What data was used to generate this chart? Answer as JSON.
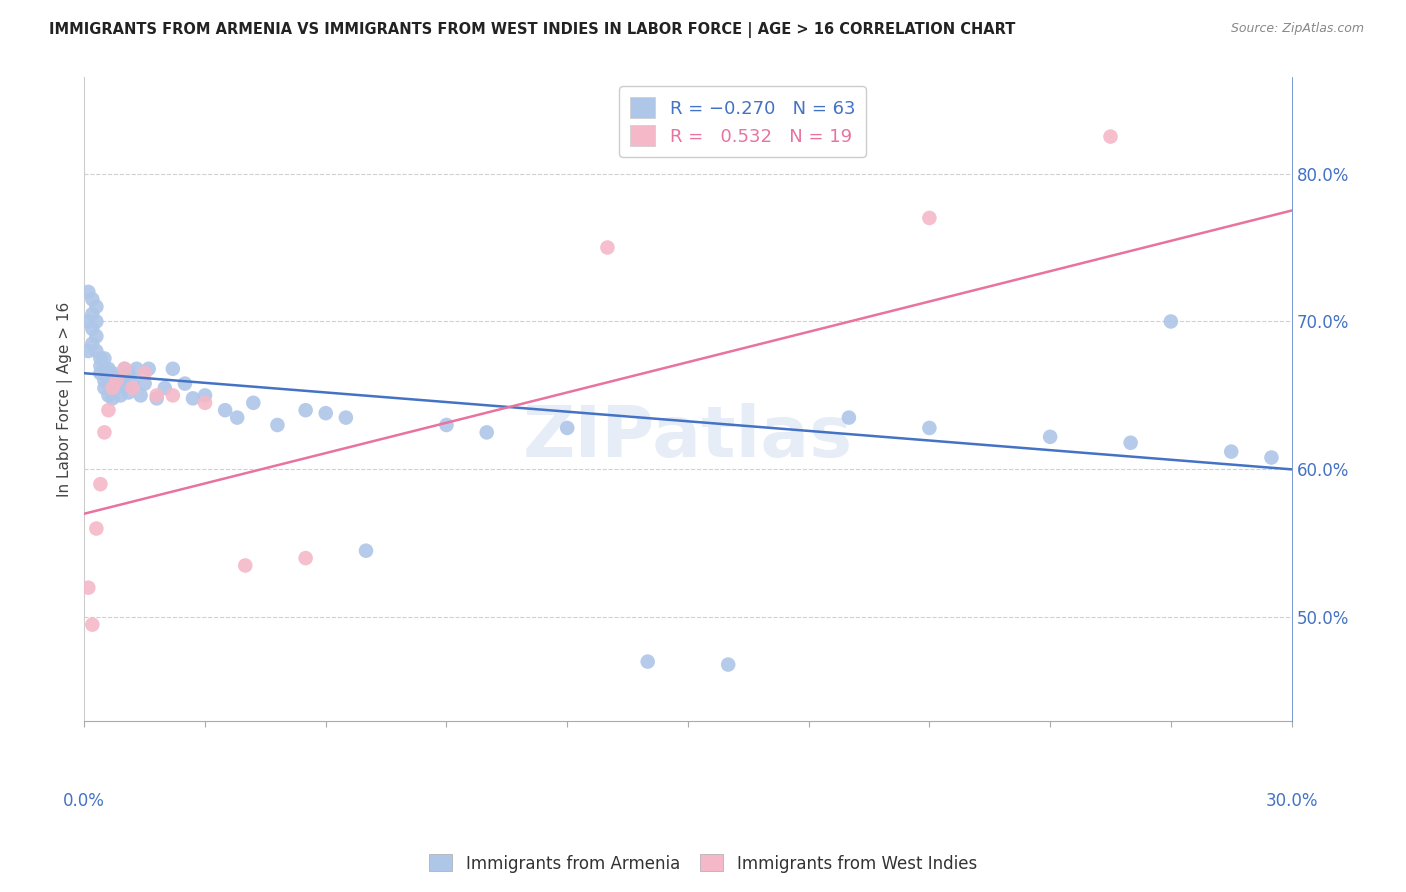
{
  "title": "IMMIGRANTS FROM ARMENIA VS IMMIGRANTS FROM WEST INDIES IN LABOR FORCE | AGE > 16 CORRELATION CHART",
  "source": "Source: ZipAtlas.com",
  "ylabel": "In Labor Force | Age > 16",
  "xlim": [
    0.0,
    0.3
  ],
  "ylim": [
    0.43,
    0.865
  ],
  "ytick_vals": [
    0.5,
    0.6,
    0.7,
    0.8
  ],
  "armenia_color": "#aec6e8",
  "west_indies_color": "#f4b8c8",
  "armenia_line_color": "#4472c4",
  "west_indies_line_color": "#e8739f",
  "armenia_line_x": [
    0.0,
    0.3
  ],
  "armenia_line_y": [
    0.665,
    0.6
  ],
  "west_indies_line_x": [
    0.0,
    0.3
  ],
  "west_indies_line_y": [
    0.57,
    0.775
  ],
  "armenia_x": [
    0.001,
    0.001,
    0.001,
    0.002,
    0.002,
    0.002,
    0.002,
    0.003,
    0.003,
    0.003,
    0.003,
    0.004,
    0.004,
    0.004,
    0.005,
    0.005,
    0.005,
    0.005,
    0.006,
    0.006,
    0.006,
    0.007,
    0.007,
    0.007,
    0.008,
    0.008,
    0.009,
    0.009,
    0.01,
    0.01,
    0.011,
    0.011,
    0.012,
    0.013,
    0.014,
    0.015,
    0.016,
    0.018,
    0.02,
    0.022,
    0.025,
    0.027,
    0.03,
    0.035,
    0.038,
    0.042,
    0.048,
    0.055,
    0.06,
    0.065,
    0.07,
    0.09,
    0.1,
    0.12,
    0.14,
    0.16,
    0.19,
    0.21,
    0.24,
    0.26,
    0.27,
    0.285,
    0.295
  ],
  "armenia_y": [
    0.72,
    0.7,
    0.68,
    0.715,
    0.705,
    0.695,
    0.685,
    0.71,
    0.7,
    0.69,
    0.68,
    0.675,
    0.67,
    0.665,
    0.675,
    0.668,
    0.66,
    0.655,
    0.668,
    0.658,
    0.65,
    0.665,
    0.658,
    0.648,
    0.662,
    0.655,
    0.66,
    0.65,
    0.668,
    0.658,
    0.665,
    0.652,
    0.658,
    0.668,
    0.65,
    0.658,
    0.668,
    0.648,
    0.655,
    0.668,
    0.658,
    0.648,
    0.65,
    0.64,
    0.635,
    0.645,
    0.63,
    0.64,
    0.638,
    0.635,
    0.545,
    0.63,
    0.625,
    0.628,
    0.47,
    0.468,
    0.635,
    0.628,
    0.622,
    0.618,
    0.7,
    0.612,
    0.608
  ],
  "west_indies_x": [
    0.001,
    0.002,
    0.003,
    0.004,
    0.005,
    0.006,
    0.007,
    0.008,
    0.01,
    0.012,
    0.015,
    0.018,
    0.022,
    0.03,
    0.04,
    0.055,
    0.13,
    0.21,
    0.255
  ],
  "west_indies_y": [
    0.52,
    0.495,
    0.56,
    0.59,
    0.625,
    0.64,
    0.655,
    0.66,
    0.668,
    0.655,
    0.665,
    0.65,
    0.65,
    0.645,
    0.535,
    0.54,
    0.75,
    0.77,
    0.825
  ],
  "background_color": "#ffffff",
  "grid_color": "#d0d0d0"
}
